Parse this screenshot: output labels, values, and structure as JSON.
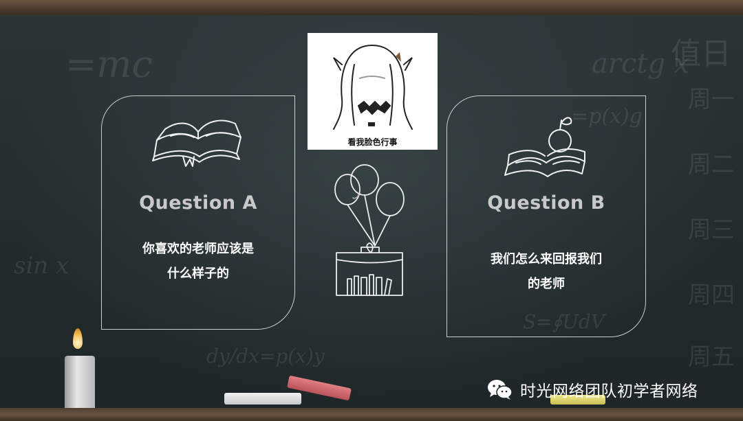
{
  "slide": {
    "card_a": {
      "title": "Question A",
      "line1": "你喜欢的老师应该是",
      "line2": "什么样子的"
    },
    "card_b": {
      "title": "Question B",
      "line1": "我们怎么来回报我们",
      "line2": "的老师"
    },
    "center_photo": {
      "caption": "看我脸色行事"
    },
    "watermark": {
      "text": "时光网络团队初学者网络",
      "icon": "wechat-icon"
    }
  }
}
